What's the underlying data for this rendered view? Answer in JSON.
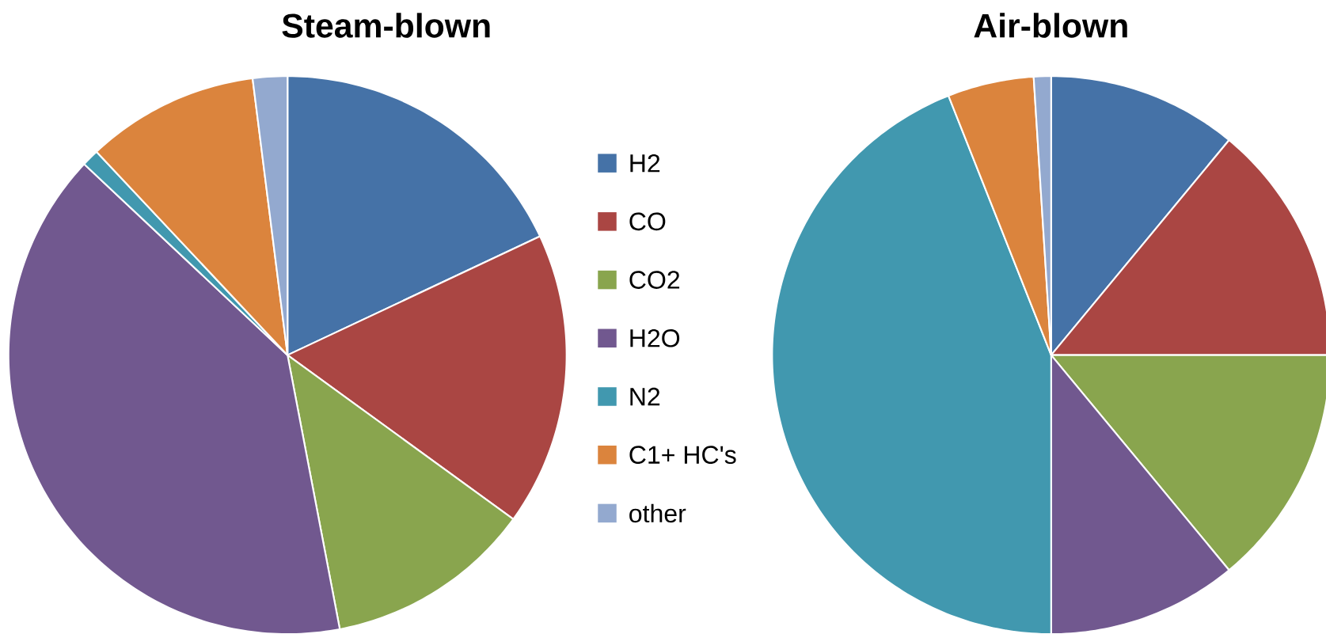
{
  "chart_data": [
    {
      "type": "pie",
      "title": "Steam-blown",
      "legend": "right",
      "categories": [
        "H2",
        "CO",
        "CO2",
        "H2O",
        "N2",
        "C1+ HC's",
        "other"
      ],
      "values": [
        18,
        17,
        12,
        40,
        1,
        10,
        2
      ],
      "colors": [
        "#4572a7",
        "#aa4643",
        "#89a54e",
        "#71588f",
        "#4198af",
        "#db843d",
        "#93a9cf"
      ]
    },
    {
      "type": "pie",
      "title": "Air-blown",
      "categories": [
        null,
        null,
        null,
        null,
        null,
        null,
        null
      ],
      "values": [
        11,
        14,
        14,
        11,
        44,
        5,
        1
      ],
      "colors": [
        "#4572a7",
        "#aa4643",
        "#89a54e",
        "#71588f",
        "#4198af",
        "#db843d",
        "#93a9cf"
      ]
    }
  ]
}
